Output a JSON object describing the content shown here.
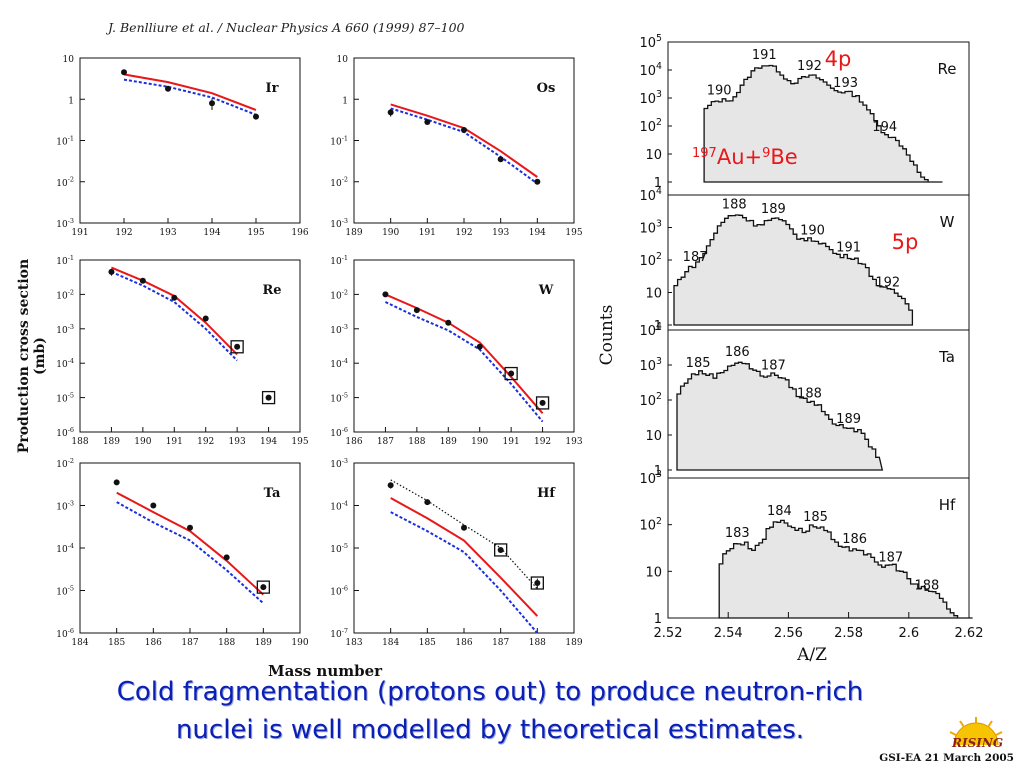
{
  "reference": "J. Benlliure et al. / Nuclear Physics A 660 (1999) 87–100",
  "left_ylabel": "Production cross section (mb)",
  "left_xlabel": "Mass number",
  "right_ylabel": "Counts",
  "right_xlabel": "A/Z",
  "caption": {
    "line1": "Cold fragmentation (protons out) to produce neutron-rich",
    "line2": "nuclei is well modelled by theoretical estimates."
  },
  "footer": "GSI-EA 21 March 2005",
  "logo_text": "RISING",
  "annotations": {
    "p4": "4p",
    "p5": "5p",
    "reaction_a1": "197",
    "reaction_el1": "Au+",
    "reaction_a2": "9",
    "reaction_el2": "Be"
  },
  "colors": {
    "caption": "#0b1fb4",
    "red_line": "#e8171a",
    "blue_line": "#1a2ee0",
    "annotation": "#e8171a",
    "histogram_fill": "#e6e6e6"
  },
  "chart_data": [
    {
      "type": "scatter",
      "title": "Ir",
      "log_y": true,
      "ylim": [
        0.001,
        10
      ],
      "xlim": [
        191,
        196
      ],
      "xticks": [
        191,
        192,
        193,
        194,
        195,
        196
      ],
      "ytick_labels": [
        {
          "b": "10",
          "e": ""
        },
        {
          "b": "1",
          "e": ""
        },
        {
          "b": "10",
          "e": "-1"
        },
        {
          "b": "10",
          "e": "-2"
        },
        {
          "b": "10",
          "e": "-3"
        }
      ],
      "series": [
        {
          "role": "data",
          "x": [
            192,
            193,
            194,
            195
          ],
          "y": [
            4.5,
            1.8,
            0.8,
            0.38
          ],
          "err": [
            0.3,
            0,
            0.25,
            0
          ]
        },
        {
          "role": "red",
          "x": [
            192,
            193,
            194,
            195
          ],
          "y": [
            4.0,
            2.6,
            1.4,
            0.55
          ]
        },
        {
          "role": "blue",
          "x": [
            192,
            193,
            194,
            195
          ],
          "y": [
            3.0,
            2.0,
            1.1,
            0.42
          ]
        }
      ],
      "boxed": []
    },
    {
      "type": "scatter",
      "title": "Os",
      "log_y": true,
      "ylim": [
        0.001,
        10
      ],
      "xlim": [
        189,
        195
      ],
      "xticks": [
        189,
        190,
        191,
        192,
        193,
        194,
        195
      ],
      "ytick_labels": [
        {
          "b": "10",
          "e": ""
        },
        {
          "b": "1",
          "e": ""
        },
        {
          "b": "10",
          "e": "-1"
        },
        {
          "b": "10",
          "e": "-2"
        },
        {
          "b": "10",
          "e": "-3"
        }
      ],
      "series": [
        {
          "role": "data",
          "x": [
            190,
            191,
            192,
            193,
            194
          ],
          "y": [
            0.48,
            0.28,
            0.18,
            0.035,
            0.01
          ],
          "err": [
            0.1,
            0,
            0,
            0,
            0
          ]
        },
        {
          "role": "red",
          "x": [
            190,
            191,
            192,
            193,
            194
          ],
          "y": [
            0.75,
            0.4,
            0.2,
            0.055,
            0.013
          ]
        },
        {
          "role": "blue",
          "x": [
            190,
            191,
            192,
            193,
            194
          ],
          "y": [
            0.6,
            0.32,
            0.16,
            0.04,
            0.009
          ]
        }
      ],
      "boxed": []
    },
    {
      "type": "scatter",
      "title": "Re",
      "log_y": true,
      "ylim": [
        1e-06,
        0.1
      ],
      "xlim": [
        188,
        195
      ],
      "xticks": [
        188,
        189,
        190,
        191,
        192,
        193,
        194,
        195
      ],
      "ytick_labels": [
        {
          "b": "10",
          "e": "-1"
        },
        {
          "b": "10",
          "e": "-2"
        },
        {
          "b": "10",
          "e": "-3"
        },
        {
          "b": "10",
          "e": "-4"
        },
        {
          "b": "10",
          "e": "-5"
        },
        {
          "b": "10",
          "e": "-6"
        }
      ],
      "series": [
        {
          "role": "data",
          "x": [
            189,
            190,
            191,
            192,
            193,
            194
          ],
          "y": [
            0.045,
            0.025,
            0.008,
            0.002,
            0.0003,
            1e-05
          ],
          "err": [
            0.01,
            0,
            0,
            0,
            0,
            0
          ]
        },
        {
          "role": "red",
          "x": [
            189,
            190,
            191,
            192,
            193
          ],
          "y": [
            0.06,
            0.025,
            0.009,
            0.0015,
            0.00018
          ]
        },
        {
          "role": "blue",
          "x": [
            189,
            190,
            191,
            192,
            193
          ],
          "y": [
            0.045,
            0.018,
            0.006,
            0.001,
            0.00012
          ]
        }
      ],
      "boxed": [
        193,
        194
      ]
    },
    {
      "type": "scatter",
      "title": "W",
      "log_y": true,
      "ylim": [
        1e-06,
        0.1
      ],
      "xlim": [
        186,
        193
      ],
      "xticks": [
        186,
        187,
        188,
        189,
        190,
        191,
        192,
        193
      ],
      "ytick_labels": [
        {
          "b": "10",
          "e": "-1"
        },
        {
          "b": "10",
          "e": "-2"
        },
        {
          "b": "10",
          "e": "-3"
        },
        {
          "b": "10",
          "e": "-4"
        },
        {
          "b": "10",
          "e": "-5"
        },
        {
          "b": "10",
          "e": "-6"
        }
      ],
      "series": [
        {
          "role": "data",
          "x": [
            187,
            188,
            189,
            190,
            191,
            192
          ],
          "y": [
            0.01,
            0.0035,
            0.0015,
            0.0003,
            5e-05,
            7e-06
          ],
          "err": [
            0,
            0,
            0,
            0,
            0,
            0
          ]
        },
        {
          "role": "red",
          "x": [
            187,
            188,
            189,
            190,
            191,
            192
          ],
          "y": [
            0.01,
            0.004,
            0.0015,
            0.0004,
            4e-05,
            3.5e-06
          ]
        },
        {
          "role": "blue",
          "x": [
            187,
            188,
            189,
            190,
            191,
            192
          ],
          "y": [
            0.006,
            0.0022,
            0.0009,
            0.00025,
            2.5e-05,
            2e-06
          ]
        }
      ],
      "boxed": [
        191,
        192
      ]
    },
    {
      "type": "scatter",
      "title": "Ta",
      "log_y": true,
      "ylim": [
        1e-06,
        0.01
      ],
      "xlim": [
        184,
        190
      ],
      "xticks": [
        184,
        185,
        186,
        187,
        188,
        189,
        190
      ],
      "ytick_labels": [
        {
          "b": "10",
          "e": "-2"
        },
        {
          "b": "10",
          "e": "-3"
        },
        {
          "b": "10",
          "e": "-4"
        },
        {
          "b": "10",
          "e": "-5"
        },
        {
          "b": "10",
          "e": "-6"
        }
      ],
      "series": [
        {
          "role": "data",
          "x": [
            185,
            186,
            187,
            188,
            189
          ],
          "y": [
            0.0035,
            0.001,
            0.0003,
            6e-05,
            1.2e-05
          ],
          "err": [
            0,
            0,
            0,
            0,
            0
          ]
        },
        {
          "role": "red",
          "x": [
            185,
            186,
            187,
            188,
            189
          ],
          "y": [
            0.002,
            0.0007,
            0.00025,
            5e-05,
            8e-06
          ]
        },
        {
          "role": "blue",
          "x": [
            185,
            186,
            187,
            188,
            189
          ],
          "y": [
            0.0012,
            0.0004,
            0.00015,
            3e-05,
            5e-06
          ]
        }
      ],
      "boxed": [
        189
      ]
    },
    {
      "type": "scatter",
      "title": "Hf",
      "log_y": true,
      "ylim": [
        1e-07,
        0.001
      ],
      "xlim": [
        183,
        189
      ],
      "xticks": [
        183,
        184,
        185,
        186,
        187,
        188,
        189
      ],
      "ytick_labels": [
        {
          "b": "10",
          "e": "-3"
        },
        {
          "b": "10",
          "e": "-4"
        },
        {
          "b": "10",
          "e": "-5"
        },
        {
          "b": "10",
          "e": "-6"
        },
        {
          "b": "10",
          "e": "-7"
        }
      ],
      "series": [
        {
          "role": "data",
          "x": [
            184,
            185,
            186,
            187,
            188
          ],
          "y": [
            0.0003,
            0.00012,
            3e-05,
            9e-06,
            1.5e-06
          ],
          "err": [
            5e-05,
            0,
            0,
            0,
            4e-07
          ]
        },
        {
          "role": "black",
          "x": [
            184,
            185,
            186,
            187,
            188
          ],
          "y": [
            0.0004,
            0.00013,
            3.5e-05,
            1e-05,
            1.1e-06
          ]
        },
        {
          "role": "red",
          "x": [
            184,
            185,
            186,
            187,
            188
          ],
          "y": [
            0.00015,
            5e-05,
            1.5e-05,
            2e-06,
            2.5e-07
          ]
        },
        {
          "role": "blue",
          "x": [
            184,
            185,
            186,
            187,
            188
          ],
          "y": [
            7e-05,
            2.5e-05,
            8e-06,
            1e-06,
            1e-07
          ]
        }
      ],
      "boxed": [
        187,
        188
      ]
    },
    {
      "type": "histogram",
      "title": "Re",
      "log_y": true,
      "ylim": [
        1,
        100000
      ],
      "xlim": [
        2.52,
        2.62
      ],
      "ytick_labels": [
        {
          "b": "10",
          "e": "5"
        },
        {
          "b": "10",
          "e": "4"
        },
        {
          "b": "10",
          "e": "3"
        },
        {
          "b": "10",
          "e": "2"
        },
        {
          "b": "10",
          "e": ""
        },
        {
          "b": "1",
          "e": ""
        }
      ],
      "peaks": [
        {
          "label": "190",
          "x": 2.537,
          "y": 800
        },
        {
          "label": "191",
          "x": 2.552,
          "y": 15000
        },
        {
          "label": "192",
          "x": 2.567,
          "y": 6000
        },
        {
          "label": "193",
          "x": 2.579,
          "y": 1500
        },
        {
          "label": "194",
          "x": 2.592,
          "y": 40
        }
      ],
      "start": 2.532,
      "end": 2.61
    },
    {
      "type": "histogram",
      "title": "W",
      "log_y": true,
      "ylim": [
        1,
        10000
      ],
      "xlim": [
        2.52,
        2.62
      ],
      "ytick_labels": [
        {
          "b": "10",
          "e": "4"
        },
        {
          "b": "10",
          "e": "3"
        },
        {
          "b": "10",
          "e": "2"
        },
        {
          "b": "10",
          "e": ""
        },
        {
          "b": "1",
          "e": ""
        }
      ],
      "peaks": [
        {
          "label": "187",
          "x": 2.529,
          "y": 60
        },
        {
          "label": "188",
          "x": 2.542,
          "y": 2500
        },
        {
          "label": "189",
          "x": 2.555,
          "y": 1800
        },
        {
          "label": "190",
          "x": 2.568,
          "y": 400
        },
        {
          "label": "191",
          "x": 2.58,
          "y": 120
        },
        {
          "label": "192",
          "x": 2.593,
          "y": 10
        }
      ],
      "start": 2.522,
      "end": 2.6
    },
    {
      "type": "histogram",
      "title": "Ta",
      "log_y": true,
      "ylim": [
        1,
        10000
      ],
      "xlim": [
        2.52,
        2.62
      ],
      "ytick_labels": [
        {
          "b": "10",
          "e": "4"
        },
        {
          "b": "10",
          "e": "3"
        },
        {
          "b": "10",
          "e": "2"
        },
        {
          "b": "10",
          "e": ""
        },
        {
          "b": "1",
          "e": ""
        }
      ],
      "peaks": [
        {
          "label": "185",
          "x": 2.53,
          "y": 600
        },
        {
          "label": "186",
          "x": 2.543,
          "y": 1200
        },
        {
          "label": "187",
          "x": 2.555,
          "y": 500
        },
        {
          "label": "188",
          "x": 2.567,
          "y": 80
        },
        {
          "label": "189",
          "x": 2.58,
          "y": 15
        }
      ],
      "start": 2.523,
      "end": 2.59
    },
    {
      "type": "histogram",
      "title": "Hf",
      "log_y": true,
      "ylim": [
        1,
        1000
      ],
      "xlim": [
        2.52,
        2.62
      ],
      "ytick_labels": [
        {
          "b": "10",
          "e": "3"
        },
        {
          "b": "10",
          "e": "2"
        },
        {
          "b": "10",
          "e": ""
        },
        {
          "b": "1",
          "e": ""
        }
      ],
      "peaks": [
        {
          "label": "183",
          "x": 2.543,
          "y": 40
        },
        {
          "label": "184",
          "x": 2.557,
          "y": 120
        },
        {
          "label": "185",
          "x": 2.569,
          "y": 90
        },
        {
          "label": "186",
          "x": 2.582,
          "y": 30
        },
        {
          "label": "187",
          "x": 2.594,
          "y": 12
        },
        {
          "label": "188",
          "x": 2.606,
          "y": 3
        }
      ],
      "start": 2.537,
      "end": 2.62,
      "xticks": [
        "2.52",
        "2.54",
        "2.56",
        "2.58",
        "2.6",
        "2.62"
      ]
    }
  ]
}
